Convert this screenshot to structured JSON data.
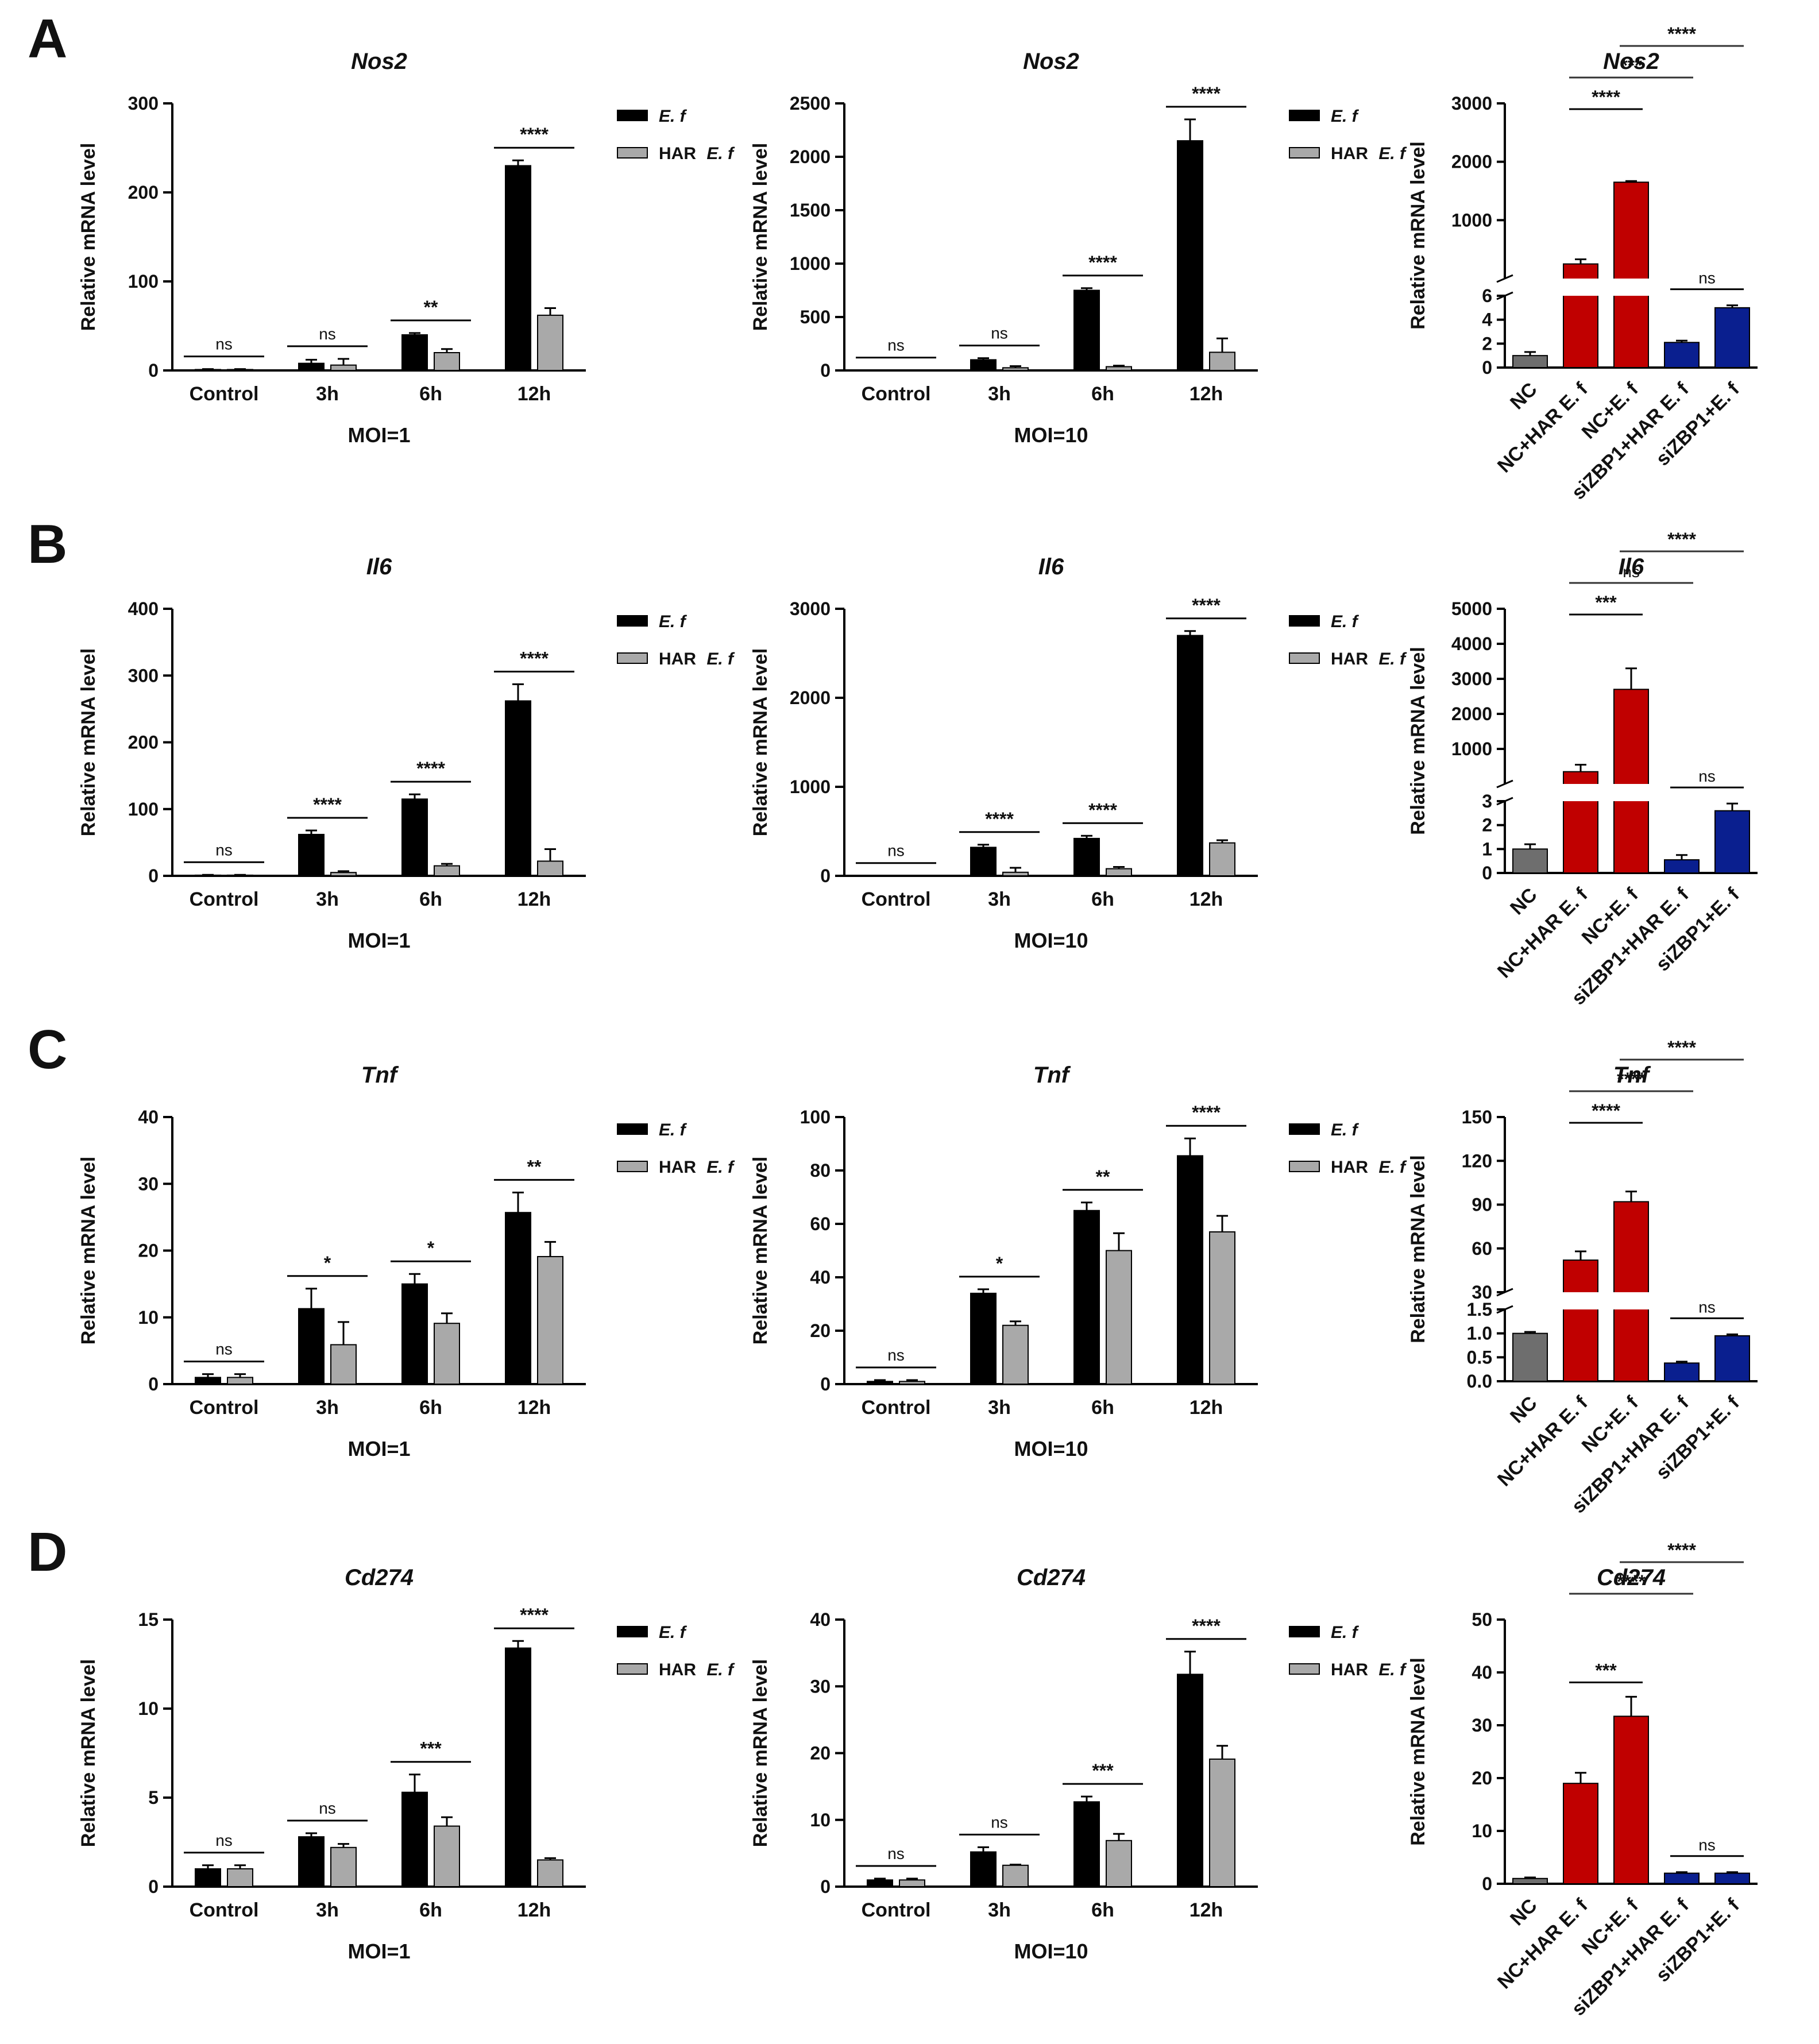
{
  "figure": {
    "panels": [
      {
        "label": "A",
        "gene": "Nos2"
      },
      {
        "label": "B",
        "gene": "Il6"
      },
      {
        "label": "C",
        "gene": "Tnf"
      },
      {
        "label": "D",
        "gene": "Cd274"
      }
    ],
    "legend": {
      "ef": "E. f",
      "har_prefix": "HAR ",
      "har_italic": "E. f"
    },
    "ylabel": "Relative mRNA level",
    "colors": {
      "ef": "#000000",
      "har": "#a9a9a9",
      "nc": "#6e6e6e",
      "red": "#c00000",
      "blue": "#0a1f8f"
    }
  },
  "chart_data": [
    {
      "id": "A1",
      "type": "bar",
      "title": "Nos2",
      "xlabel": "MOI=1",
      "ylabel": "Relative mRNA level",
      "ylim": [
        0,
        300
      ],
      "yticks": [
        0,
        100,
        200,
        300
      ],
      "categories": [
        "Control",
        "3h",
        "6h",
        "12h"
      ],
      "series": [
        {
          "name": "E. f",
          "values": [
            1,
            8,
            40,
            230
          ],
          "errors": [
            0.5,
            4,
            2,
            6
          ]
        },
        {
          "name": "HAR E. f",
          "values": [
            1,
            6,
            20,
            62
          ],
          "errors": [
            0.5,
            7,
            4,
            8
          ]
        }
      ],
      "significance": [
        "ns",
        "ns",
        "**",
        "****"
      ]
    },
    {
      "id": "A2",
      "type": "bar",
      "title": "Nos2",
      "xlabel": "MOI=10",
      "ylabel": "Relative mRNA level",
      "ylim": [
        0,
        2500
      ],
      "yticks": [
        0,
        500,
        1000,
        1500,
        2000,
        2500
      ],
      "categories": [
        "Control",
        "3h",
        "6h",
        "12h"
      ],
      "series": [
        {
          "name": "E. f",
          "values": [
            1,
            100,
            750,
            2150
          ],
          "errors": [
            1,
            15,
            20,
            200
          ]
        },
        {
          "name": "HAR E. f",
          "values": [
            1,
            25,
            35,
            170
          ],
          "errors": [
            1,
            15,
            10,
            130
          ]
        }
      ],
      "significance": [
        "ns",
        "ns",
        "****",
        "****"
      ]
    },
    {
      "id": "A3",
      "type": "bar",
      "broken_axis": true,
      "title": "Nos2",
      "ylabel": "Relative mRNA level",
      "lower_ylim": [
        0,
        6
      ],
      "lower_yticks": [
        0,
        2,
        4,
        6
      ],
      "upper_ylim": [
        0,
        3000
      ],
      "upper_yticks": [
        1000,
        2000,
        3000
      ],
      "categories": [
        "NC",
        "NC+HAR E. f",
        "NC+E. f",
        "siZBP1+HAR E. f",
        "siZBP1+E. f"
      ],
      "values": [
        1.0,
        250,
        1650,
        2.1,
        5.0
      ],
      "errors": [
        0.3,
        80,
        20,
        0.15,
        0.2
      ],
      "brackets": [
        {
          "from": "NC+HAR E. f",
          "to": "NC+E. f",
          "label": "****"
        },
        {
          "from": "NC+HAR E. f",
          "to": "siZBP1+HAR E. f",
          "label": "***"
        },
        {
          "from": "NC+E. f",
          "to": "siZBP1+E. f",
          "label": "****"
        },
        {
          "from": "siZBP1+HAR E. f",
          "to": "siZBP1+E. f",
          "label": "ns"
        }
      ]
    },
    {
      "id": "B1",
      "type": "bar",
      "title": "Il6",
      "xlabel": "MOI=1",
      "ylabel": "Relative mRNA level",
      "ylim": [
        0,
        400
      ],
      "yticks": [
        0,
        100,
        200,
        300,
        400
      ],
      "categories": [
        "Control",
        "3h",
        "6h",
        "12h"
      ],
      "series": [
        {
          "name": "E. f",
          "values": [
            1,
            62,
            115,
            262
          ],
          "errors": [
            0.5,
            6,
            7,
            25
          ]
        },
        {
          "name": "HAR E. f",
          "values": [
            1,
            5,
            15,
            22
          ],
          "errors": [
            0.5,
            2,
            3,
            18
          ]
        }
      ],
      "significance": [
        "ns",
        "****",
        "****",
        "****"
      ]
    },
    {
      "id": "B2",
      "type": "bar",
      "title": "Il6",
      "xlabel": "MOI=10",
      "ylabel": "Relative mRNA level",
      "ylim": [
        0,
        3000
      ],
      "yticks": [
        0,
        1000,
        2000,
        3000
      ],
      "categories": [
        "Control",
        "3h",
        "6h",
        "12h"
      ],
      "series": [
        {
          "name": "E. f",
          "values": [
            1,
            320,
            420,
            2700
          ],
          "errors": [
            1,
            30,
            30,
            50
          ]
        },
        {
          "name": "HAR E. f",
          "values": [
            1,
            40,
            80,
            370
          ],
          "errors": [
            1,
            50,
            20,
            30
          ]
        }
      ],
      "significance": [
        "ns",
        "****",
        "****",
        "****"
      ]
    },
    {
      "id": "B3",
      "type": "bar",
      "broken_axis": true,
      "title": "Il6",
      "ylabel": "Relative mRNA level",
      "lower_ylim": [
        0,
        3
      ],
      "lower_yticks": [
        0,
        1,
        2,
        3
      ],
      "upper_ylim": [
        0,
        5000
      ],
      "upper_yticks": [
        1000,
        2000,
        3000,
        4000,
        5000
      ],
      "categories": [
        "NC",
        "NC+HAR E. f",
        "NC+E. f",
        "siZBP1+HAR E. f",
        "siZBP1+E. f"
      ],
      "values": [
        1.0,
        350,
        2700,
        0.55,
        2.6
      ],
      "errors": [
        0.2,
        200,
        600,
        0.2,
        0.3
      ],
      "brackets": [
        {
          "from": "NC+HAR E. f",
          "to": "NC+E. f",
          "label": "***"
        },
        {
          "from": "NC+HAR E. f",
          "to": "siZBP1+HAR E. f",
          "label": "ns"
        },
        {
          "from": "NC+E. f",
          "to": "siZBP1+E. f",
          "label": "****"
        },
        {
          "from": "siZBP1+HAR E. f",
          "to": "siZBP1+E. f",
          "label": "ns"
        }
      ]
    },
    {
      "id": "C1",
      "type": "bar",
      "title": "Tnf",
      "xlabel": "MOI=1",
      "ylabel": "Relative mRNA level",
      "ylim": [
        0,
        40
      ],
      "yticks": [
        0,
        10,
        20,
        30,
        40
      ],
      "categories": [
        "Control",
        "3h",
        "6h",
        "12h"
      ],
      "series": [
        {
          "name": "E. f",
          "values": [
            1,
            11.3,
            15,
            25.7
          ],
          "errors": [
            0.5,
            3,
            1.5,
            3
          ]
        },
        {
          "name": "HAR E. f",
          "values": [
            1,
            5.9,
            9.1,
            19.1
          ],
          "errors": [
            0.5,
            3.4,
            1.5,
            2.2
          ]
        }
      ],
      "significance": [
        "ns",
        "*",
        "*",
        "**"
      ]
    },
    {
      "id": "C2",
      "type": "bar",
      "title": "Tnf",
      "xlabel": "MOI=10",
      "ylabel": "Relative mRNA level",
      "ylim": [
        0,
        100
      ],
      "yticks": [
        0,
        20,
        40,
        60,
        80,
        100
      ],
      "categories": [
        "Control",
        "3h",
        "6h",
        "12h"
      ],
      "series": [
        {
          "name": "E. f",
          "values": [
            1,
            34,
            65,
            85.5
          ],
          "errors": [
            0.5,
            1.5,
            3,
            6.5
          ]
        },
        {
          "name": "HAR E. f",
          "values": [
            1,
            22,
            50,
            57
          ],
          "errors": [
            0.5,
            1.5,
            6.5,
            6
          ]
        }
      ],
      "significance": [
        "ns",
        "*",
        "**",
        "****"
      ]
    },
    {
      "id": "C3",
      "type": "bar",
      "broken_axis": true,
      "title": "Tnf",
      "ylabel": "Relative mRNA level",
      "lower_ylim": [
        0,
        1.5
      ],
      "lower_yticks": [
        0.0,
        0.5,
        1.0,
        1.5
      ],
      "upper_ylim": [
        30,
        150
      ],
      "upper_yticks": [
        30,
        60,
        90,
        120,
        150
      ],
      "categories": [
        "NC",
        "NC+HAR E. f",
        "NC+E. f",
        "siZBP1+HAR E. f",
        "siZBP1+E. f"
      ],
      "values": [
        1.0,
        52,
        92,
        0.38,
        0.95
      ],
      "errors": [
        0.03,
        6,
        7,
        0.03,
        0.03
      ],
      "brackets": [
        {
          "from": "NC+HAR E. f",
          "to": "NC+E. f",
          "label": "****"
        },
        {
          "from": "NC+HAR E. f",
          "to": "siZBP1+HAR E. f",
          "label": "****"
        },
        {
          "from": "NC+E. f",
          "to": "siZBP1+E. f",
          "label": "****"
        },
        {
          "from": "siZBP1+HAR E. f",
          "to": "siZBP1+E. f",
          "label": "ns"
        }
      ]
    },
    {
      "id": "D1",
      "type": "bar",
      "title": "Cd274",
      "xlabel": "MOI=1",
      "ylabel": "Relative mRNA level",
      "ylim": [
        0,
        15
      ],
      "yticks": [
        0,
        5,
        10,
        15
      ],
      "categories": [
        "Control",
        "3h",
        "6h",
        "12h"
      ],
      "series": [
        {
          "name": "E. f",
          "values": [
            1,
            2.8,
            5.3,
            13.4
          ],
          "errors": [
            0.2,
            0.2,
            1,
            0.4
          ]
        },
        {
          "name": "HAR E. f",
          "values": [
            1,
            2.2,
            3.4,
            1.5
          ],
          "errors": [
            0.2,
            0.2,
            0.5,
            0.1
          ]
        }
      ],
      "significance": [
        "ns",
        "ns",
        "***",
        "****"
      ]
    },
    {
      "id": "D2",
      "type": "bar",
      "title": "Cd274",
      "xlabel": "MOI=10",
      "ylabel": "Relative mRNA level",
      "ylim": [
        0,
        40
      ],
      "yticks": [
        0,
        10,
        20,
        30,
        40
      ],
      "categories": [
        "Control",
        "3h",
        "6h",
        "12h"
      ],
      "series": [
        {
          "name": "E. f",
          "values": [
            1,
            5.2,
            12.7,
            31.8
          ],
          "errors": [
            0.2,
            0.7,
            0.8,
            3.4
          ]
        },
        {
          "name": "HAR E. f",
          "values": [
            1,
            3.2,
            6.9,
            19.1
          ],
          "errors": [
            0.2,
            0.1,
            1,
            2
          ]
        }
      ],
      "significance": [
        "ns",
        "ns",
        "***",
        "****"
      ]
    },
    {
      "id": "D3",
      "type": "bar",
      "broken_axis": false,
      "title": "Cd274",
      "ylabel": "Relative mRNA level",
      "ylim": [
        0,
        50
      ],
      "yticks": [
        0,
        10,
        20,
        30,
        40,
        50
      ],
      "categories": [
        "NC",
        "NC+HAR E. f",
        "NC+E. f",
        "siZBP1+HAR E. f",
        "siZBP1+E. f"
      ],
      "values": [
        1.0,
        19,
        31.7,
        2.0,
        2.0
      ],
      "errors": [
        0.2,
        2,
        3.7,
        0.2,
        0.2
      ],
      "brackets": [
        {
          "from": "NC+HAR E. f",
          "to": "NC+E. f",
          "label": "***"
        },
        {
          "from": "NC+HAR E. f",
          "to": "siZBP1+HAR E. f",
          "label": "****"
        },
        {
          "from": "NC+E. f",
          "to": "siZBP1+E. f",
          "label": "****"
        },
        {
          "from": "siZBP1+HAR E. f",
          "to": "siZBP1+E. f",
          "label": "ns"
        }
      ]
    }
  ]
}
